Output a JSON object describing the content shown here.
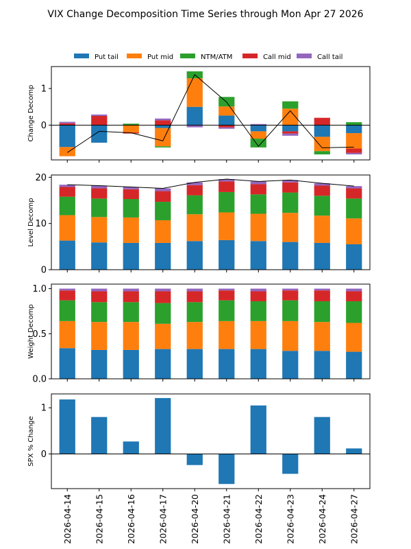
{
  "title": "VIX Change Decomposition Time Series through Mon Apr 27 2026",
  "colors": {
    "put_tail": "#1f77b4",
    "put_mid": "#ff7f0e",
    "ntm_atm": "#2ca02c",
    "call_mid": "#d62728",
    "call_tail": "#9467bd",
    "line": "#000000"
  },
  "chart_data": [
    {
      "type": "bar",
      "stacked": true,
      "ylabel": "Change Decomp",
      "ylim": [
        -0.95,
        1.6
      ],
      "yticks": [
        0,
        1
      ],
      "zero_line": true,
      "legend": {
        "placement": "top",
        "entries": [
          "Put tail",
          "Put mid",
          "NTM/ATM",
          "Call mid",
          "Call tail"
        ]
      },
      "categories": [
        "2026-04-14",
        "2026-04-15",
        "2026-04-16",
        "2026-04-17",
        "2026-04-20",
        "2026-04-21",
        "2026-04-22",
        "2026-04-23",
        "2026-04-24",
        "2026-04-27"
      ],
      "series": [
        {
          "name": "Put tail",
          "color_key": "put_tail",
          "values": [
            -0.6,
            -0.48,
            0.0,
            -0.08,
            0.5,
            0.26,
            -0.17,
            -0.17,
            -0.32,
            -0.22
          ]
        },
        {
          "name": "Put mid",
          "color_key": "put_mid",
          "values": [
            -0.25,
            0.0,
            -0.2,
            -0.5,
            0.78,
            0.25,
            -0.2,
            0.45,
            -0.39,
            -0.42
          ]
        },
        {
          "name": "NTM/ATM",
          "color_key": "ntm_atm",
          "values": [
            0.0,
            0.0,
            0.04,
            -0.03,
            0.19,
            0.26,
            -0.24,
            0.2,
            -0.09,
            0.08
          ]
        },
        {
          "name": "Call mid",
          "color_key": "call_mid",
          "values": [
            0.05,
            0.25,
            -0.03,
            0.13,
            0.0,
            -0.06,
            0.0,
            -0.06,
            0.2,
            -0.12
          ]
        },
        {
          "name": "Call tail",
          "color_key": "call_tail",
          "values": [
            0.04,
            0.04,
            0.0,
            0.05,
            -0.06,
            -0.04,
            0.03,
            -0.06,
            0.0,
            -0.04
          ]
        }
      ],
      "total_line": [
        -0.75,
        -0.17,
        -0.21,
        -0.43,
        1.38,
        0.63,
        -0.58,
        0.39,
        -0.62,
        -0.6
      ]
    },
    {
      "type": "bar",
      "stacked": true,
      "ylabel": "Level Decomp",
      "ylim": [
        0,
        20.5
      ],
      "yticks": [
        0,
        10,
        20
      ],
      "categories": [
        "2026-04-14",
        "2026-04-15",
        "2026-04-16",
        "2026-04-17",
        "2026-04-20",
        "2026-04-21",
        "2026-04-22",
        "2026-04-23",
        "2026-04-24",
        "2026-04-27"
      ],
      "series": [
        {
          "name": "Put tail",
          "color_key": "put_tail",
          "values": [
            6.3,
            5.9,
            5.8,
            5.8,
            6.2,
            6.4,
            6.2,
            6.0,
            5.8,
            5.5
          ]
        },
        {
          "name": "Put mid",
          "color_key": "put_mid",
          "values": [
            5.5,
            5.5,
            5.5,
            4.9,
            5.8,
            6.0,
            5.9,
            6.3,
            5.9,
            5.6
          ]
        },
        {
          "name": "NTM/ATM",
          "color_key": "ntm_atm",
          "values": [
            4.0,
            4.0,
            4.0,
            4.0,
            4.1,
            4.4,
            4.2,
            4.4,
            4.3,
            4.3
          ]
        },
        {
          "name": "Call mid",
          "color_key": "call_mid",
          "values": [
            2.1,
            2.2,
            2.1,
            2.3,
            2.2,
            2.3,
            2.2,
            2.2,
            2.2,
            2.2
          ]
        },
        {
          "name": "Call tail",
          "color_key": "call_tail",
          "values": [
            0.5,
            0.6,
            0.5,
            0.6,
            0.6,
            0.5,
            0.6,
            0.5,
            0.5,
            0.5
          ]
        }
      ],
      "total_line": [
        18.4,
        18.2,
        17.9,
        17.6,
        18.9,
        19.6,
        19.1,
        19.4,
        18.7,
        18.1
      ]
    },
    {
      "type": "bar",
      "stacked": true,
      "ylabel": "Weight Decomp",
      "ylim": [
        0,
        1.05
      ],
      "yticks": [
        "0.0",
        "0.5",
        "1.0"
      ],
      "categories": [
        "2026-04-14",
        "2026-04-15",
        "2026-04-16",
        "2026-04-17",
        "2026-04-20",
        "2026-04-21",
        "2026-04-22",
        "2026-04-23",
        "2026-04-24",
        "2026-04-27"
      ],
      "series": [
        {
          "name": "Put tail",
          "color_key": "put_tail",
          "values": [
            0.34,
            0.32,
            0.32,
            0.33,
            0.33,
            0.33,
            0.33,
            0.31,
            0.31,
            0.3
          ]
        },
        {
          "name": "Put mid",
          "color_key": "put_mid",
          "values": [
            0.3,
            0.31,
            0.31,
            0.28,
            0.3,
            0.31,
            0.31,
            0.33,
            0.32,
            0.32
          ]
        },
        {
          "name": "NTM/ATM",
          "color_key": "ntm_atm",
          "values": [
            0.23,
            0.22,
            0.22,
            0.23,
            0.22,
            0.23,
            0.22,
            0.23,
            0.23,
            0.24
          ]
        },
        {
          "name": "Call mid",
          "color_key": "call_mid",
          "values": [
            0.11,
            0.12,
            0.12,
            0.13,
            0.12,
            0.11,
            0.11,
            0.11,
            0.12,
            0.11
          ]
        },
        {
          "name": "Call tail",
          "color_key": "call_tail",
          "values": [
            0.02,
            0.03,
            0.03,
            0.03,
            0.03,
            0.02,
            0.03,
            0.02,
            0.02,
            0.03
          ]
        }
      ]
    },
    {
      "type": "bar",
      "ylabel": "SPX % Change",
      "ylim": [
        -0.75,
        1.3
      ],
      "yticks": [
        0,
        1
      ],
      "zero_line": true,
      "categories": [
        "2026-04-14",
        "2026-04-15",
        "2026-04-16",
        "2026-04-17",
        "2026-04-20",
        "2026-04-21",
        "2026-04-22",
        "2026-04-23",
        "2026-04-24",
        "2026-04-27"
      ],
      "series": [
        {
          "color_key": "put_tail",
          "values": [
            1.18,
            0.8,
            0.27,
            1.21,
            -0.24,
            -0.65,
            1.05,
            -0.43,
            0.8,
            0.12
          ]
        }
      ],
      "show_xticklabels": true
    }
  ]
}
